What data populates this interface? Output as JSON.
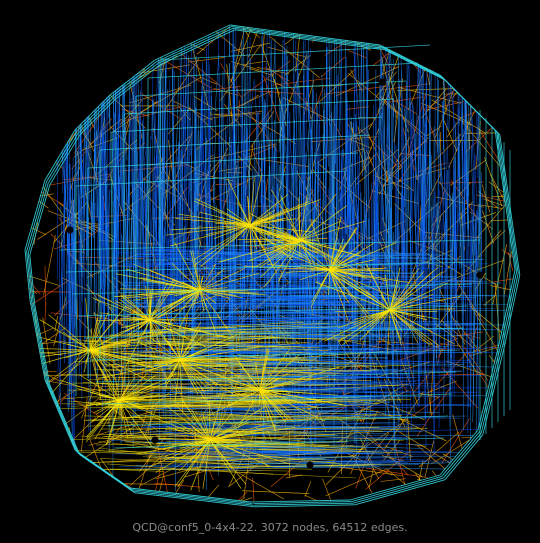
{
  "caption": "QCD@conf5_0-4x4-22. 3072 nodes, 64512 edges.",
  "graph": {
    "nodes": 3072,
    "edges": 64512,
    "background": "#000000",
    "palette": {
      "deep_blue": "#0050ff",
      "blue": "#1e8cff",
      "cyan": "#33d6e0",
      "yellow": "#ffee00",
      "orange": "#ffaa00",
      "red_orange": "#ff5a00",
      "node": "#000000"
    }
  }
}
